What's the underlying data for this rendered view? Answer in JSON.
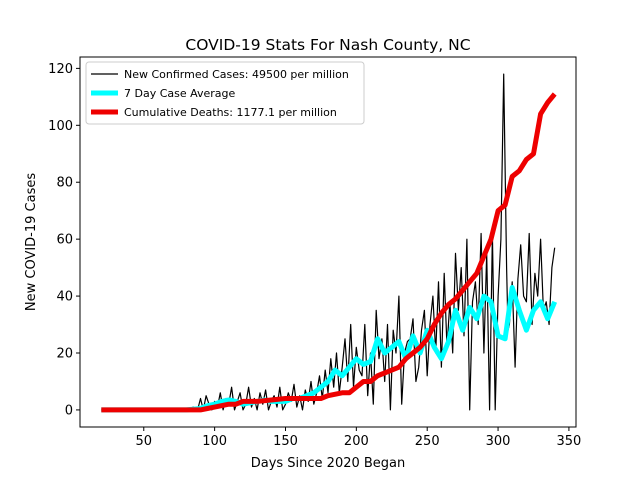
{
  "chart_data": {
    "type": "line",
    "title": "COVID-19 Stats For Nash County, NC",
    "xlabel": "Days Since 2020 Began",
    "ylabel": "New COVID-19 Cases",
    "xlim": [
      5,
      355
    ],
    "ylim": [
      -6,
      124
    ],
    "xticks": [
      50,
      100,
      150,
      200,
      250,
      300,
      350
    ],
    "yticks": [
      0,
      20,
      40,
      60,
      80,
      100,
      120
    ],
    "grid": false,
    "legend_position": "top-left",
    "series": [
      {
        "name": "New Confirmed Cases: 49500 per million",
        "color": "#000000",
        "x": [
          20,
          40,
          60,
          80,
          85,
          88,
          90,
          92,
          94,
          96,
          98,
          100,
          102,
          104,
          106,
          108,
          110,
          112,
          114,
          116,
          118,
          120,
          122,
          124,
          126,
          128,
          130,
          132,
          134,
          136,
          138,
          140,
          142,
          144,
          146,
          148,
          150,
          152,
          154,
          156,
          158,
          160,
          162,
          164,
          166,
          168,
          170,
          172,
          174,
          176,
          178,
          180,
          182,
          184,
          186,
          188,
          190,
          192,
          194,
          196,
          198,
          200,
          202,
          204,
          206,
          208,
          210,
          212,
          214,
          216,
          218,
          220,
          222,
          224,
          226,
          228,
          230,
          232,
          234,
          236,
          238,
          240,
          242,
          244,
          246,
          248,
          250,
          252,
          254,
          256,
          258,
          260,
          262,
          264,
          266,
          268,
          270,
          272,
          274,
          276,
          278,
          280,
          282,
          284,
          286,
          288,
          290,
          292,
          294,
          296,
          298,
          300,
          302,
          304,
          306,
          307,
          308,
          310,
          312,
          314,
          316,
          318,
          320,
          322,
          324,
          326,
          328,
          330,
          332,
          334,
          336,
          338,
          340
        ],
        "values": [
          0,
          0,
          0,
          0,
          1,
          0,
          4,
          0,
          5,
          2,
          0,
          3,
          1,
          6,
          0,
          4,
          2,
          8,
          0,
          3,
          6,
          0,
          2,
          8,
          1,
          4,
          0,
          6,
          2,
          7,
          0,
          3,
          5,
          1,
          8,
          0,
          2,
          6,
          3,
          9,
          1,
          5,
          0,
          7,
          3,
          10,
          2,
          6,
          12,
          4,
          14,
          6,
          18,
          8,
          20,
          6,
          15,
          25,
          10,
          30,
          8,
          22,
          14,
          12,
          30,
          5,
          20,
          2,
          35,
          18,
          25,
          10,
          30,
          0,
          28,
          20,
          40,
          2,
          20,
          24,
          25,
          32,
          10,
          15,
          28,
          35,
          12,
          30,
          40,
          20,
          45,
          15,
          48,
          22,
          38,
          20,
          55,
          35,
          50,
          26,
          60,
          0,
          38,
          45,
          30,
          62,
          20,
          55,
          0,
          62,
          0,
          40,
          60,
          118,
          50,
          28,
          30,
          45,
          15,
          46,
          58,
          40,
          38,
          62,
          30,
          48,
          40,
          60,
          35,
          38,
          30,
          50,
          57
        ]
      },
      {
        "name": "7 Day Case Average",
        "color": "#00ffff",
        "x": [
          20,
          40,
          60,
          80,
          90,
          95,
          100,
          105,
          110,
          115,
          120,
          125,
          130,
          135,
          140,
          145,
          150,
          155,
          160,
          165,
          170,
          175,
          180,
          185,
          190,
          195,
          200,
          205,
          210,
          215,
          220,
          225,
          230,
          235,
          240,
          245,
          250,
          255,
          260,
          265,
          270,
          275,
          280,
          285,
          290,
          295,
          300,
          305,
          310,
          315,
          320,
          325,
          330,
          335,
          340
        ],
        "values": [
          0,
          0,
          0,
          0,
          0.5,
          1.5,
          2,
          3,
          3.5,
          3,
          2,
          2.5,
          3,
          3.5,
          3,
          3,
          3,
          4,
          4,
          5,
          6,
          8,
          10,
          14,
          12,
          15,
          18,
          16,
          17,
          25,
          20,
          22,
          24,
          18,
          26,
          20,
          28,
          22,
          18,
          24,
          35,
          28,
          36,
          32,
          40,
          38,
          26,
          25,
          43,
          35,
          28,
          35,
          38,
          32,
          38
        ]
      },
      {
        "name": "Cumulative Deaths: 1177.1 per million",
        "color": "#ee0000",
        "x": [
          20,
          40,
          60,
          80,
          90,
          95,
          100,
          110,
          115,
          120,
          130,
          140,
          150,
          160,
          170,
          175,
          180,
          190,
          195,
          200,
          205,
          210,
          215,
          220,
          225,
          230,
          235,
          240,
          245,
          250,
          255,
          260,
          265,
          270,
          275,
          280,
          285,
          290,
          295,
          300,
          305,
          310,
          315,
          320,
          325,
          330,
          335,
          340
        ],
        "values": [
          0,
          0,
          0,
          0,
          0,
          0.5,
          1,
          2,
          2,
          3,
          3,
          3.5,
          4,
          4,
          4,
          4,
          5,
          6,
          6,
          8,
          10,
          10,
          12,
          13,
          14,
          15,
          18,
          20,
          22,
          25,
          30,
          34,
          37,
          39,
          42,
          45,
          48,
          54,
          60,
          70,
          72,
          82,
          84,
          88,
          90,
          104,
          108,
          111
        ]
      }
    ]
  }
}
